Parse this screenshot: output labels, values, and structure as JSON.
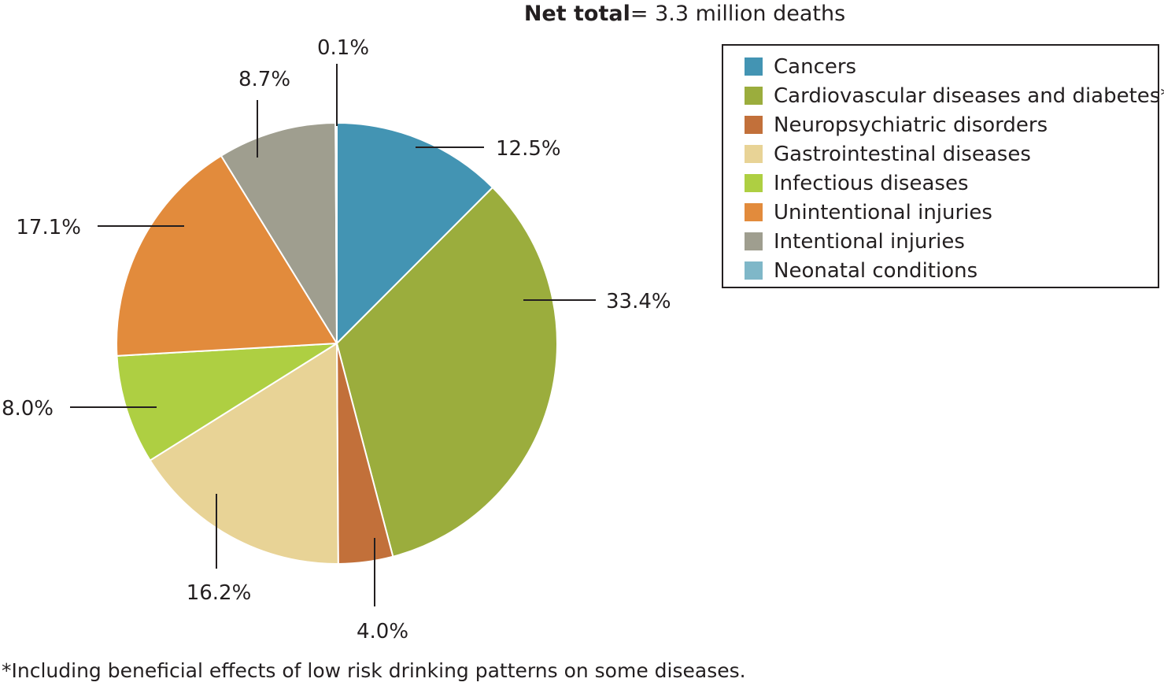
{
  "title": {
    "bold_part": "Net total",
    "rest": "= 3.3 million deaths"
  },
  "chart_data": {
    "type": "pie",
    "start_angle_deg": 0,
    "direction": "clockwise",
    "slices": [
      {
        "name": "Cancers",
        "value": 12.5,
        "label": "12.5%",
        "color": "#4394b3"
      },
      {
        "name": "Cardiovascular diseases and diabetes*",
        "value": 33.4,
        "label": "33.4%",
        "color": "#9bad3d"
      },
      {
        "name": "Neuropsychiatric disorders",
        "value": 4.0,
        "label": "4.0%",
        "color": "#c2703a"
      },
      {
        "name": "Gastrointestinal diseases",
        "value": 16.2,
        "label": "16.2%",
        "color": "#e8d396"
      },
      {
        "name": "Infectious diseases",
        "value": 8.0,
        "label": "8.0%",
        "color": "#aecf42"
      },
      {
        "name": "Unintentional injuries",
        "value": 17.1,
        "label": "17.1%",
        "color": "#e28b3c"
      },
      {
        "name": "Intentional injuries",
        "value": 8.7,
        "label": "8.7%",
        "color": "#9f9e8f"
      },
      {
        "name": "Neonatal conditions",
        "value": 0.1,
        "label": "0.1%",
        "color": "#7fb7c8"
      }
    ],
    "legend_placement": "top-right"
  },
  "footnote": "*Including beneficial effects of low risk drinking patterns on some diseases."
}
